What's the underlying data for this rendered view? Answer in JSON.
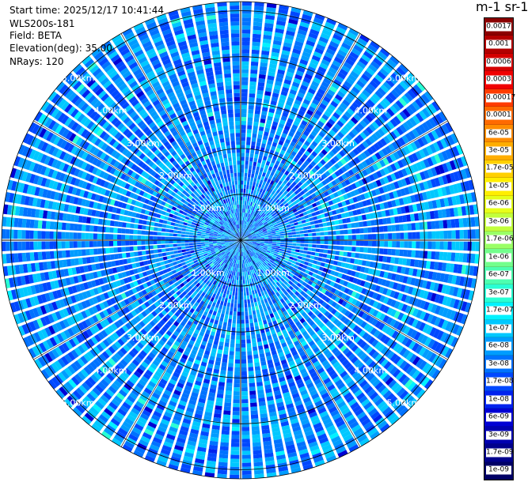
{
  "info": {
    "start_time": "Start time: 2025/12/17 10:41:44",
    "device": "WLS200s-181",
    "field": "Field: BETA",
    "elevation": "Elevation(deg): 35.00",
    "nrays": "NRays: 120"
  },
  "colorbar": {
    "unit_text": "m-1 sr-1",
    "labels": [
      "0.0017",
      "0.001",
      "0.0006",
      "0.0003",
      "0.00017",
      "0.0001",
      "6e-05",
      "3e-05",
      "1.7e-05",
      "1e-05",
      "6e-06",
      "3e-06",
      "1.7e-06",
      "1e-06",
      "6e-07",
      "3e-07",
      "1.7e-07",
      "1e-07",
      "6e-08",
      "3e-08",
      "1.7e-08",
      "1e-08",
      "6e-09",
      "3e-09",
      "1.7e-09",
      "1e-09"
    ],
    "colors": [
      "#8b0000",
      "#b30000",
      "#d40000",
      "#f00000",
      "#ff3c00",
      "#ff6a00",
      "#ff8c00",
      "#ffad00",
      "#ffd000",
      "#ffee00",
      "#e6ff1a",
      "#c2ff3c",
      "#9aff66",
      "#72ff8c",
      "#4cffb0",
      "#29ffd4",
      "#00f2ff",
      "#00c8ff",
      "#009cff",
      "#0072ff",
      "#0048ff",
      "#0022ee",
      "#0000d4",
      "#0000b0",
      "#00008c",
      "#000066"
    ]
  },
  "chart_data": {
    "type": "heatmap",
    "projection": "polar PPI",
    "field": "BETA",
    "elevation_deg": 35.0,
    "n_rays": 120,
    "range_rings_km": [
      1,
      2,
      3,
      4,
      5
    ],
    "ring_labels": [
      "1.00km",
      "2.00km",
      "3.00km",
      "4.00km",
      "5.00km"
    ],
    "max_range_km": 5.2,
    "dominant_value_range": [
      1e-08,
      1e-07
    ],
    "dominant_colors": [
      "#0048ff",
      "#0072ff",
      "#009cff",
      "#00c8ff"
    ],
    "sparse_colors": [
      "#0022ee",
      "#0000d4",
      "#00f2ff",
      "#29ffd4"
    ],
    "colorbar_min": 1e-09,
    "colorbar_max": 0.0017,
    "grid": true
  }
}
